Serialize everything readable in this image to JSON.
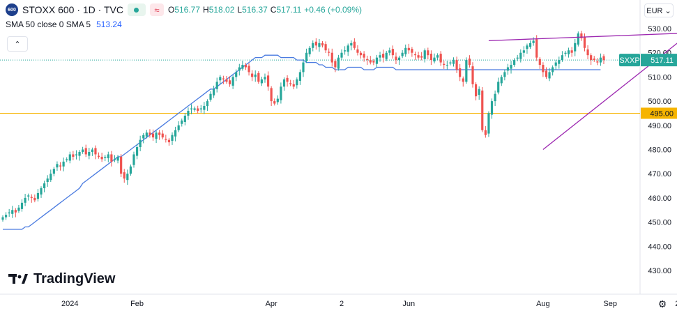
{
  "header": {
    "logo_text": "600",
    "title": "STOXX 600 · 1D · TVC",
    "open_label": "O",
    "open": "516.77",
    "high_label": "H",
    "high": "518.02",
    "low_label": "L",
    "low": "516.37",
    "close_label": "C",
    "close": "517.11",
    "change": "+0.46 (+0.09%)"
  },
  "indicator": {
    "label": "SMA 50 close 0 SMA 5",
    "value": "513.24"
  },
  "currency": "EUR ⌄",
  "collapse_icon": "chevron-up-icon",
  "collapse_glyph": "⌃",
  "settings_glyph": "⚙",
  "brand": "TradingView",
  "last_price": {
    "symbol": "SXXP",
    "value": "517.11"
  },
  "level_label": "495.00",
  "colors": {
    "up": "#26a69a",
    "down": "#ef5350",
    "sma": "#4a7be0",
    "trend": "#9c27b0",
    "level": "#f6b400"
  },
  "chart_data": {
    "type": "candlestick",
    "title": "STOXX 600 · 1D · TVC",
    "ylim": [
      425,
      533
    ],
    "y_ticks": [
      "530.00",
      "520.00",
      "510.00",
      "500.00",
      "490.00",
      "480.00",
      "470.00",
      "460.00",
      "450.00",
      "440.00",
      "430.00"
    ],
    "x_ticks": [
      {
        "label": "2024",
        "index": 21
      },
      {
        "label": "Feb",
        "index": 42
      },
      {
        "label": "Apr",
        "index": 84
      },
      {
        "label": "2",
        "index": 106
      },
      {
        "label": "Jun",
        "index": 127
      },
      {
        "label": "Aug",
        "index": 169
      },
      {
        "label": "Sep",
        "index": 190
      },
      {
        "label": "2",
        "index": 211
      }
    ],
    "closes": [
      452,
      453,
      454,
      455,
      454,
      456,
      458,
      460,
      461,
      460,
      459,
      462,
      464,
      466,
      468,
      470,
      472,
      474,
      473,
      475,
      476,
      478,
      477,
      478,
      479,
      480,
      478,
      479,
      480,
      478,
      477,
      476,
      477,
      478,
      475,
      476,
      477,
      470,
      468,
      470,
      473,
      478,
      481,
      484,
      486,
      487,
      486,
      485,
      487,
      486,
      485,
      484,
      483,
      486,
      488,
      490,
      492,
      494,
      496,
      497,
      497,
      496,
      497,
      498,
      500,
      503,
      505,
      508,
      510,
      509,
      508,
      507,
      510,
      512,
      514,
      515,
      514,
      512,
      510,
      511,
      508,
      509,
      510,
      506,
      500,
      499,
      501,
      506,
      509,
      508,
      507,
      506,
      509,
      512,
      516,
      520,
      522,
      524,
      523,
      524,
      523,
      521,
      520,
      516,
      514,
      518,
      520,
      521,
      523,
      524,
      522,
      520,
      519,
      518,
      517,
      516,
      516,
      518,
      519,
      518,
      520,
      521,
      519,
      517,
      518,
      520,
      522,
      521,
      520,
      519,
      518,
      518,
      521,
      519,
      517,
      518,
      519,
      516,
      515,
      515,
      516,
      517,
      513,
      510,
      508,
      517,
      515,
      507,
      502,
      505,
      488,
      486,
      495,
      500,
      503,
      508,
      510,
      512,
      514,
      515,
      517,
      518,
      520,
      521,
      523,
      524,
      525,
      518,
      515,
      512,
      510,
      512,
      514,
      516,
      517,
      519,
      520,
      521,
      520,
      524,
      528,
      526,
      522,
      519,
      517,
      517,
      516,
      518,
      517
    ],
    "sma50": [
      447,
      447,
      447,
      447,
      447,
      447,
      447,
      448,
      448,
      449,
      450,
      451,
      452,
      453,
      454,
      455,
      456,
      457,
      458,
      459,
      460,
      461,
      462,
      463,
      464,
      466,
      467,
      468,
      469,
      470,
      471,
      472,
      473,
      474,
      475,
      476,
      477,
      477,
      478,
      479,
      480,
      481,
      482,
      483,
      484,
      485,
      486,
      487,
      488,
      489,
      490,
      491,
      492,
      493,
      494,
      495,
      496,
      497,
      498,
      499,
      500,
      501,
      502,
      503,
      504,
      505,
      505,
      506,
      507,
      508,
      509,
      510,
      511,
      512,
      513,
      514,
      515,
      516,
      517,
      518,
      518,
      518,
      519,
      519,
      519,
      519,
      519,
      518,
      518,
      518,
      518,
      518,
      517,
      517,
      517,
      516,
      516,
      516,
      516,
      515,
      515,
      514,
      514,
      514,
      513,
      513,
      513,
      513,
      514,
      514,
      514,
      514,
      514,
      513,
      513,
      513,
      513,
      514,
      514,
      514,
      514,
      514,
      514,
      513,
      513,
      513,
      513,
      513,
      513,
      513,
      513,
      513,
      513,
      513,
      513,
      513,
      513,
      513,
      513,
      513,
      513,
      513,
      513,
      513,
      513,
      513,
      513,
      513,
      513,
      513,
      513,
      513,
      513,
      513,
      513,
      513,
      513,
      513,
      513,
      513,
      513,
      513,
      513,
      513,
      513,
      513,
      513,
      513,
      513,
      513,
      513,
      513,
      513,
      513,
      513,
      513,
      513,
      513,
      513,
      513,
      513,
      513,
      513,
      513,
      513,
      513,
      513,
      513
    ],
    "trendlines": [
      {
        "from": {
          "index": 152,
          "value": 525
        },
        "to": {
          "index": 211,
          "value": 528
        }
      },
      {
        "from": {
          "index": 169,
          "value": 480
        },
        "to": {
          "index": 211,
          "value": 524
        }
      }
    ],
    "horizontal_level": 495
  }
}
